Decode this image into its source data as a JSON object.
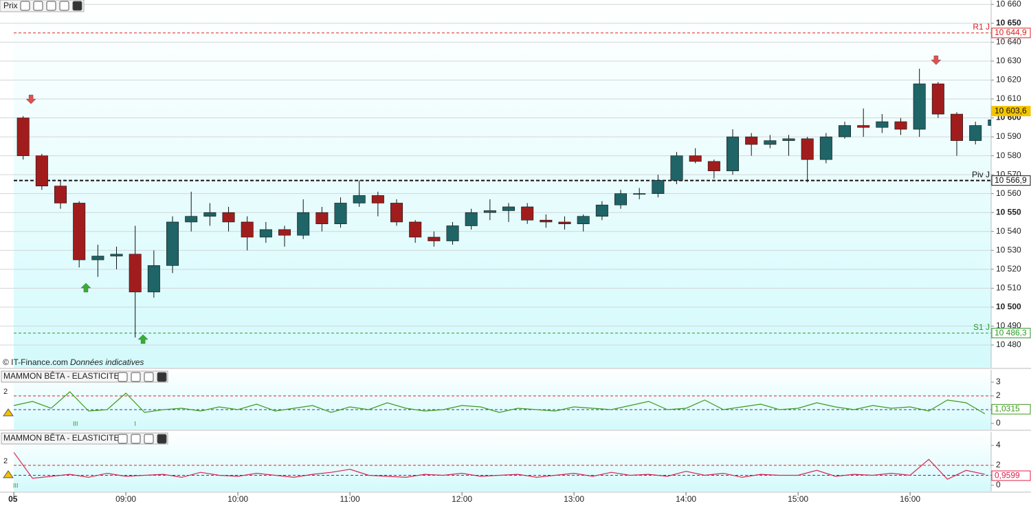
{
  "toolbar": {
    "title": "Prix"
  },
  "chart_data": [
    {
      "type": "candlestick",
      "copyright": "© IT-Finance.com",
      "note": "Données indicatives",
      "x": [
        480,
        490,
        500,
        510,
        520,
        530,
        540,
        550,
        560,
        570,
        580,
        590,
        600,
        610,
        620,
        630,
        640,
        650,
        660,
        670,
        680,
        690,
        700,
        710,
        720,
        730,
        740,
        750,
        760,
        770,
        780,
        790,
        800,
        810,
        820,
        830,
        840,
        850,
        860,
        870,
        880,
        890,
        900,
        910,
        920,
        930,
        940,
        950,
        960,
        970,
        980,
        990,
        1000
      ],
      "open": [
        10600,
        10580,
        10564,
        10555,
        10525,
        10527,
        10528,
        10508,
        10522,
        10545,
        10548,
        10550,
        10545,
        10537,
        10541,
        10538,
        10550,
        10544,
        10555,
        10559,
        10555,
        10545,
        10537,
        10535,
        10543,
        10550,
        10551,
        10553,
        10546,
        10545,
        10544,
        10548,
        10554,
        10560,
        10560,
        10567,
        10580,
        10577,
        10572,
        10590,
        10586,
        10588,
        10589,
        10578,
        10590,
        10596,
        10595,
        10598,
        10594,
        10618,
        10602,
        10588,
        10596
      ],
      "high": [
        10601,
        10581,
        10567,
        10556,
        10533,
        10532,
        10543,
        10530,
        10548,
        10561,
        10555,
        10553,
        10548,
        10545,
        10543,
        10557,
        10553,
        10558,
        10567,
        10561,
        10557,
        10546,
        10540,
        10545,
        10552,
        10557,
        10555,
        10555,
        10549,
        10548,
        10549,
        10556,
        10562,
        10563,
        10570,
        10582,
        10584,
        10578,
        10594,
        10592,
        10591,
        10591,
        10590,
        10592,
        10598,
        10605,
        10602,
        10600,
        10626,
        10619,
        10603,
        10598,
        10600
      ],
      "low": [
        10578,
        10562,
        10552,
        10521,
        10516,
        10520,
        10484,
        10505,
        10518,
        10540,
        10543,
        10540,
        10530,
        10534,
        10532,
        10536,
        10540,
        10542,
        10553,
        10548,
        10543,
        10534,
        10532,
        10533,
        10541,
        10546,
        10545,
        10544,
        10542,
        10541,
        10540,
        10546,
        10552,
        10557,
        10558,
        10565,
        10576,
        10568,
        10570,
        10580,
        10584,
        10580,
        10566,
        10576,
        10589,
        10590,
        10592,
        10591,
        10590,
        10600,
        10580,
        10586,
        10596
      ],
      "close": [
        10580,
        10564,
        10555,
        10525,
        10527,
        10528,
        10508,
        10522,
        10545,
        10548,
        10550,
        10545,
        10537,
        10541,
        10538,
        10550,
        10544,
        10555,
        10559,
        10555,
        10545,
        10537,
        10535,
        10543,
        10550,
        10551,
        10553,
        10546,
        10545,
        10544,
        10548,
        10554,
        10560,
        10560,
        10567,
        10580,
        10577,
        10572,
        10590,
        10586,
        10588,
        10589,
        10578,
        10590,
        10596,
        10595,
        10598,
        10594,
        10618,
        10602,
        10588,
        10596,
        10599
      ],
      "up_color": "#1f6466",
      "down_color": "#a11d1d",
      "xlim": [
        472.6,
        1003.4
      ],
      "ylim": [
        10468,
        10662.3
      ],
      "yticks": [
        {
          "value": 10480,
          "label": "10 480"
        },
        {
          "value": 10490,
          "label": "10 490"
        },
        {
          "value": 10500,
          "label": "10 500",
          "bold": true
        },
        {
          "value": 10510,
          "label": "10 510"
        },
        {
          "value": 10520,
          "label": "10 520"
        },
        {
          "value": 10530,
          "label": "10 530"
        },
        {
          "value": 10540,
          "label": "10 540"
        },
        {
          "value": 10550,
          "label": "10 550",
          "bold": true
        },
        {
          "value": 10560,
          "label": "10 560"
        },
        {
          "value": 10570,
          "label": "10 570"
        },
        {
          "value": 10580,
          "label": "10 580"
        },
        {
          "value": 10590,
          "label": "10 590"
        },
        {
          "value": 10600,
          "label": "10 600",
          "bold": true
        },
        {
          "value": 10610,
          "label": "10 610"
        },
        {
          "value": 10620,
          "label": "10 620"
        },
        {
          "value": 10630,
          "label": "10 630"
        },
        {
          "value": 10640,
          "label": "10 640"
        },
        {
          "value": 10650,
          "label": "10 650",
          "bold": true
        },
        {
          "value": 10660,
          "label": "10 660"
        }
      ],
      "grid": true,
      "levels": [
        {
          "name": "R1 J",
          "value": 10644.9,
          "label": "10 644,9",
          "color": "#e02020"
        },
        {
          "name": "Piv J",
          "value": 10566.9,
          "label": "10 566,9",
          "color": "#111111"
        },
        {
          "name": "S1 J",
          "value": 10486.3,
          "label": "10 486,3",
          "color": "#2a9a2a"
        }
      ],
      "last": {
        "value": 10603.6,
        "label": "10 603,6",
        "color": "#f5c400"
      },
      "signals": [
        {
          "x": 489.2,
          "y": 10609.6,
          "direction": "down",
          "color": "#e05050"
        },
        {
          "x": 518.6,
          "y": 10510.5,
          "direction": "up",
          "color": "#33b033"
        },
        {
          "x": 549.2,
          "y": 10483.3,
          "direction": "up",
          "color": "#33b033"
        },
        {
          "x": 973.9,
          "y": 10630.3,
          "direction": "down",
          "color": "#e05050"
        }
      ]
    },
    {
      "type": "line",
      "title": "MAMMON BÊTA - ELASTICITE",
      "x": [
        480,
        490,
        500,
        510,
        520,
        530,
        540,
        550,
        560,
        570,
        580,
        590,
        600,
        610,
        620,
        630,
        640,
        650,
        660,
        670,
        680,
        690,
        700,
        710,
        720,
        730,
        740,
        750,
        760,
        770,
        780,
        790,
        800,
        810,
        820,
        830,
        840,
        850,
        860,
        870,
        880,
        890,
        900,
        910,
        920,
        930,
        940,
        950,
        960,
        970,
        980,
        990,
        1000
      ],
      "series": [
        {
          "color": "#3d9a1c",
          "values": [
            1.3,
            1.6,
            1.1,
            2.3,
            0.9,
            1.0,
            2.2,
            0.8,
            1.0,
            1.1,
            0.9,
            1.2,
            1.0,
            1.4,
            0.9,
            1.1,
            1.3,
            0.8,
            1.2,
            1.0,
            1.5,
            1.1,
            0.9,
            1.0,
            1.3,
            1.2,
            0.8,
            1.1,
            1.0,
            0.9,
            1.2,
            1.1,
            1.0,
            1.3,
            1.6,
            1.0,
            1.1,
            1.7,
            1.0,
            1.2,
            1.4,
            1.0,
            1.1,
            1.5,
            1.2,
            1.0,
            1.3,
            1.1,
            1.2,
            0.9,
            1.7,
            1.5,
            0.7
          ]
        }
      ],
      "xlim": [
        472.6,
        1003.4
      ],
      "ylim": [
        -0.45,
        3.9
      ],
      "yticks": [
        0,
        2,
        3
      ],
      "levels": [
        {
          "value": 2,
          "color": "#e02020",
          "tag": 2
        },
        {
          "value": 1,
          "color": "#2040a0"
        }
      ],
      "last": {
        "value": 1.0315,
        "label": "1,0315",
        "color": "#3d9a1c"
      },
      "markers": [
        {
          "x": 513,
          "label": "III"
        },
        {
          "x": 545,
          "label": "I"
        }
      ]
    },
    {
      "type": "line",
      "title": "MAMMON BÊTA - ELASTICITE",
      "x": [
        480,
        490,
        500,
        510,
        520,
        530,
        540,
        550,
        560,
        570,
        580,
        590,
        600,
        610,
        620,
        630,
        640,
        650,
        660,
        670,
        680,
        690,
        700,
        710,
        720,
        730,
        740,
        750,
        760,
        770,
        780,
        790,
        800,
        810,
        820,
        830,
        840,
        850,
        860,
        870,
        880,
        890,
        900,
        910,
        920,
        930,
        940,
        950,
        960,
        970,
        980,
        990,
        1000
      ],
      "series": [
        {
          "color": "#e0204a",
          "values": [
            3.3,
            0.7,
            0.9,
            1.1,
            0.8,
            1.2,
            0.9,
            1.0,
            1.1,
            0.8,
            1.3,
            1.0,
            0.9,
            1.2,
            1.0,
            0.8,
            1.1,
            1.3,
            1.6,
            1.0,
            0.9,
            0.8,
            1.1,
            1.0,
            1.2,
            0.9,
            1.0,
            1.1,
            0.8,
            1.0,
            1.2,
            0.9,
            1.3,
            1.0,
            1.1,
            0.9,
            1.4,
            1.0,
            1.2,
            0.8,
            1.1,
            1.0,
            1.0,
            1.5,
            0.9,
            1.1,
            1.0,
            1.2,
            1.0,
            2.6,
            0.6,
            1.5,
            1.1
          ]
        }
      ],
      "xlim": [
        472.6,
        1003.4
      ],
      "ylim": [
        -0.62,
        5.38
      ],
      "yticks": [
        0,
        2,
        4
      ],
      "levels": [
        {
          "value": 2,
          "color": "#e02020",
          "tag": 2
        },
        {
          "value": 1,
          "color": "#2040a0"
        }
      ],
      "last": {
        "value": 0.9599,
        "label": "0,9599",
        "color": "#e0204a"
      },
      "markers": [
        {
          "x": 481,
          "label": "III"
        }
      ],
      "xticks": [
        {
          "value": 480,
          "label": "05",
          "bold": true
        },
        {
          "value": 540,
          "label": "09:00"
        },
        {
          "value": 600,
          "label": "10:00"
        },
        {
          "value": 660,
          "label": "11:00"
        },
        {
          "value": 720,
          "label": "12:00"
        },
        {
          "value": 780,
          "label": "13:00"
        },
        {
          "value": 840,
          "label": "14:00"
        },
        {
          "value": 900,
          "label": "15:00"
        },
        {
          "value": 960,
          "label": "16:00"
        }
      ]
    }
  ]
}
